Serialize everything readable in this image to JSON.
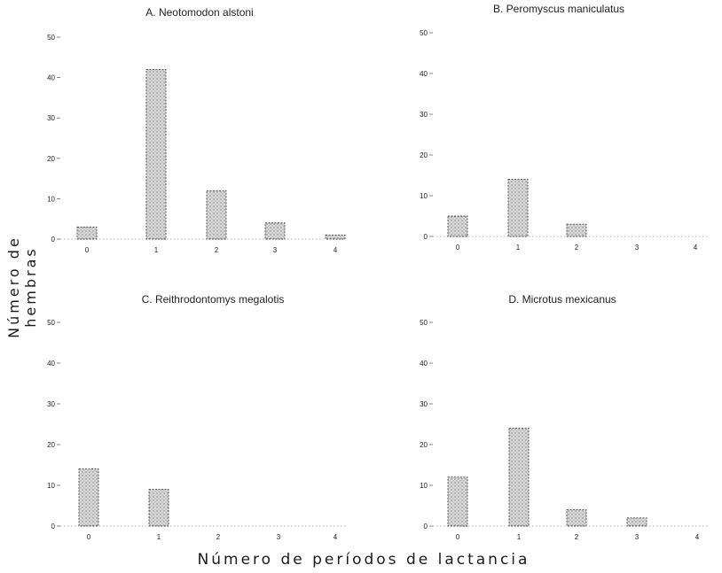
{
  "figure": {
    "ylabel": "Número de hembras",
    "xlabel": "Número de períodos de lactancia"
  },
  "chart_data": [
    {
      "type": "bar",
      "title": "A. Neotomodon alstoni",
      "categories": [
        "0",
        "1",
        "2",
        "3",
        "4"
      ],
      "values": [
        3,
        42,
        12,
        4,
        1
      ],
      "ylim": [
        0,
        50
      ],
      "yticks": [
        0,
        10,
        20,
        30,
        40,
        50
      ],
      "grid": false
    },
    {
      "type": "bar",
      "title": "B. Peromyscus maniculatus",
      "categories": [
        "0",
        "1",
        "2",
        "3",
        "4"
      ],
      "values": [
        5,
        14,
        3,
        0,
        0
      ],
      "ylim": [
        0,
        50
      ],
      "yticks": [
        0,
        10,
        20,
        30,
        40,
        50
      ],
      "grid": false
    },
    {
      "type": "bar",
      "title": "C. Reithrodontomys megalotis",
      "categories": [
        "0",
        "1",
        "2",
        "3",
        "4"
      ],
      "values": [
        14,
        9,
        0,
        0,
        0
      ],
      "ylim": [
        0,
        50
      ],
      "yticks": [
        0,
        10,
        20,
        30,
        40,
        50
      ],
      "grid": false
    },
    {
      "type": "bar",
      "title": "D. Microtus mexicanus",
      "categories": [
        "0",
        "1",
        "2",
        "3",
        "4"
      ],
      "values": [
        12,
        24,
        4,
        2,
        0
      ],
      "ylim": [
        0,
        50
      ],
      "yticks": [
        0,
        10,
        20,
        30,
        40,
        50
      ],
      "grid": false
    }
  ]
}
